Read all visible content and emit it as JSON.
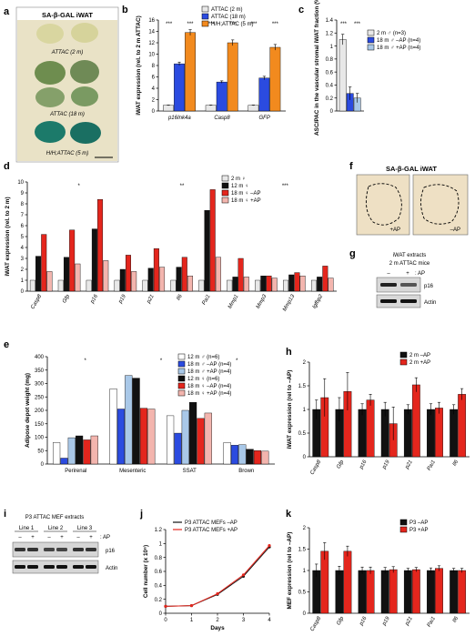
{
  "colors": {
    "black": "#111111",
    "orange": "#f28a1e",
    "blue": "#2b4be0",
    "lightblue": "#a9c8e8",
    "grey": "#e8e8e8",
    "red": "#e4261d",
    "pink": "#f3b5ae",
    "bluegreen": "#c7dcef",
    "sagal_bg": "#e9e2c6",
    "sagal_green": "#1c7a6a"
  },
  "panels": {
    "a": {
      "letter": "a",
      "title": "SA-β-GAL iWAT",
      "labels": [
        "ATTAC (2 m)",
        "ATTAC (18 m)",
        "H/H;ATTAC (5 m)"
      ]
    },
    "b": {
      "letter": "b"
    },
    "c": {
      "letter": "c"
    },
    "d": {
      "letter": "d"
    },
    "e": {
      "letter": "e"
    },
    "f": {
      "letter": "f",
      "title": "SA-β-GAL iWAT",
      "labels": [
        "+AP",
        "–AP"
      ]
    },
    "g": {
      "letter": "g",
      "title": "iWAT extracts",
      "subtitle": "2 m ATTAC mice",
      "ap_label": ": AP",
      "lanes": [
        "–",
        "+"
      ],
      "bands": [
        "p16",
        "Actin"
      ]
    },
    "h": {
      "letter": "h"
    },
    "i": {
      "letter": "i",
      "title": "P3 ATTAC MEF extracts",
      "lines": [
        "Line 1",
        "Line 2",
        "Line 3"
      ],
      "lanes": [
        "–",
        "+",
        "–",
        "+",
        "–",
        "+"
      ],
      "ap_label": ": AP",
      "bands": [
        "p16",
        "Actin"
      ]
    },
    "j": {
      "letter": "j"
    },
    "k": {
      "letter": "k"
    }
  },
  "chart_data": [
    {
      "id": "b",
      "type": "bar",
      "ylabel": "iWAT expression (rel. to 2 m ATTAC)",
      "ylim": [
        0,
        16
      ],
      "yticks": [
        "0",
        "2",
        "4",
        "6",
        "8",
        "10",
        "12",
        "14",
        "16"
      ],
      "categories": [
        "p16Ink4a",
        "Casp8",
        "GFP"
      ],
      "series": [
        {
          "name": "ATTAC (2 m)",
          "color": "grey",
          "values": [
            1,
            1,
            1
          ],
          "err": [
            0.05,
            0.05,
            0.05
          ]
        },
        {
          "name": "ATTAC (18 m)",
          "color": "blue",
          "values": [
            8.3,
            5.1,
            5.8
          ],
          "err": [
            0.3,
            0.2,
            0.3
          ]
        },
        {
          "name": "H/H;ATTAC (5 m)",
          "color": "orange",
          "values": [
            13.8,
            12.0,
            11.2
          ],
          "err": [
            0.5,
            0.5,
            0.5
          ]
        }
      ],
      "annotations": [
        "***",
        "***",
        "***",
        "***",
        "***",
        "***"
      ]
    },
    {
      "id": "c",
      "type": "bar",
      "ylabel": "ASC/PAC in the vascular stromal iWAT fraction (%)",
      "ylim": [
        0,
        1.4
      ],
      "yticks": [
        "0",
        "0.2",
        "0.4",
        "0.6",
        "0.8",
        "1",
        "1.2",
        "1.4"
      ],
      "series": [
        {
          "name": "2 m ♂ (n=3)",
          "color": "grey",
          "values": [
            1.1
          ],
          "err": [
            0.08
          ]
        },
        {
          "name": "18 m ♂ –AP (n=4)",
          "color": "blue",
          "values": [
            0.27
          ],
          "err": [
            0.1
          ]
        },
        {
          "name": "18 m ♂ +AP (n=4)",
          "color": "lightblue",
          "values": [
            0.2
          ],
          "err": [
            0.07
          ]
        }
      ],
      "annotations": [
        "***",
        "***"
      ]
    },
    {
      "id": "d",
      "type": "bar",
      "ylabel": "iWAT expression (rel. to 2 m)",
      "ylim": [
        0,
        10
      ],
      "yticks": [
        "0",
        "1",
        "2",
        "3",
        "4",
        "5",
        "6",
        "7",
        "8",
        "9",
        "10"
      ],
      "categories": [
        "Casp8",
        "Gfp",
        "p16",
        "p19",
        "p21",
        "Il6",
        "Pai1",
        "Mmp1",
        "Mmp3",
        "Mmp13",
        "Igfbp2"
      ],
      "series": [
        {
          "name": "2 m ♀",
          "color": "grey",
          "values": [
            1,
            1,
            1,
            1,
            1,
            1,
            1,
            1,
            1,
            1,
            1
          ]
        },
        {
          "name": "12 m ♀",
          "color": "black",
          "values": [
            3.2,
            3.1,
            5.7,
            2.0,
            2.1,
            2.2,
            7.4,
            1.3,
            1.4,
            1.5,
            1.3
          ]
        },
        {
          "name": "18 m ♀ –AP",
          "color": "red",
          "values": [
            5.2,
            5.6,
            8.4,
            3.3,
            3.9,
            3.1,
            9.3,
            3.0,
            1.4,
            1.7,
            2.3
          ]
        },
        {
          "name": "18 m ♀ +AP",
          "color": "pink",
          "values": [
            1.8,
            2.5,
            2.8,
            1.8,
            2.2,
            1.4,
            3.1,
            1.3,
            1.2,
            1.4,
            1.2
          ]
        }
      ],
      "annotations": [
        "*",
        "**",
        "***"
      ]
    },
    {
      "id": "e",
      "type": "bar",
      "ylabel": "Adipose depot weight (mg)",
      "ylim": [
        0,
        400
      ],
      "yticks": [
        "0",
        "50",
        "100",
        "150",
        "200",
        "250",
        "300",
        "350",
        "400"
      ],
      "categories": [
        "Perirenal",
        "Mesenteric",
        "SSAT",
        "Brown"
      ],
      "series": [
        {
          "name": "12 m ♂ (n=6)",
          "color": "white",
          "values": [
            80,
            280,
            180,
            80
          ]
        },
        {
          "name": "18 m ♂ –AP (n=4)",
          "color": "blue",
          "values": [
            22,
            205,
            115,
            70
          ]
        },
        {
          "name": "18 m ♂ +AP (n=4)",
          "color": "lightblue",
          "values": [
            98,
            330,
            200,
            72
          ]
        },
        {
          "name": "12 m ♀ (n=6)",
          "color": "black",
          "values": [
            105,
            320,
            230,
            55
          ]
        },
        {
          "name": "18 m ♀ –AP (n=4)",
          "color": "red",
          "values": [
            90,
            208,
            170,
            50
          ]
        },
        {
          "name": "18 m ♀ +AP (n=4)",
          "color": "pink",
          "values": [
            105,
            205,
            190,
            48
          ]
        }
      ],
      "annotations": [
        "*",
        "*",
        "*"
      ]
    },
    {
      "id": "h",
      "type": "bar",
      "ylabel": "iWAT expression (rel to –AP)",
      "ylim": [
        0,
        2
      ],
      "yticks": [
        "0",
        "0.5",
        "1",
        "1.5",
        "2"
      ],
      "categories": [
        "Casp8",
        "Gfp",
        "p16",
        "p19",
        "p21",
        "Pai1",
        "Il6"
      ],
      "series": [
        {
          "name": "2 m –AP",
          "color": "black",
          "values": [
            1,
            1,
            1,
            1,
            1,
            1,
            1
          ],
          "err": [
            0.2,
            0.25,
            0.12,
            0.15,
            0.1,
            0.12,
            0.1
          ]
        },
        {
          "name": "2 m +AP",
          "color": "red",
          "values": [
            1.25,
            1.38,
            1.2,
            0.7,
            1.52,
            1.03,
            1.32
          ],
          "err": [
            0.4,
            0.4,
            0.12,
            0.35,
            0.15,
            0.12,
            0.12
          ]
        }
      ]
    },
    {
      "id": "j",
      "type": "line",
      "xlabel": "Days",
      "ylabel": "Cell number (x 10⁶)",
      "x": [
        0,
        1,
        2,
        3,
        4
      ],
      "xticks": [
        "0",
        "1",
        "2",
        "3",
        "4"
      ],
      "ylim": [
        0,
        1.2
      ],
      "yticks": [
        "0",
        "0.2",
        "0.4",
        "0.6",
        "0.8",
        "1",
        "1.2"
      ],
      "series": [
        {
          "name": "P3 ATTAC MEFs –AP",
          "color": "black",
          "values": [
            0.1,
            0.11,
            0.27,
            0.53,
            0.95
          ]
        },
        {
          "name": "P3 ATTAC MEFs +AP",
          "color": "red",
          "values": [
            0.1,
            0.11,
            0.28,
            0.55,
            0.97
          ]
        }
      ]
    },
    {
      "id": "k",
      "type": "bar",
      "ylabel": "MEF expression (rel to –AP)",
      "ylim": [
        0,
        2
      ],
      "yticks": [
        "0",
        "0.5",
        "1",
        "1.5",
        "2"
      ],
      "categories": [
        "Casp8",
        "Gfp",
        "p16",
        "p19",
        "p21",
        "Pai1",
        "Il6"
      ],
      "series": [
        {
          "name": "P3 –AP",
          "color": "black",
          "values": [
            1,
            1,
            1,
            1,
            1,
            1,
            1
          ],
          "err": [
            0.15,
            0.1,
            0.08,
            0.07,
            0.05,
            0.06,
            0.05
          ]
        },
        {
          "name": "P3 +AP",
          "color": "red",
          "values": [
            1.45,
            1.45,
            1.0,
            1.02,
            1.02,
            1.05,
            1.0
          ],
          "err": [
            0.2,
            0.12,
            0.08,
            0.07,
            0.05,
            0.06,
            0.05
          ]
        }
      ]
    }
  ]
}
